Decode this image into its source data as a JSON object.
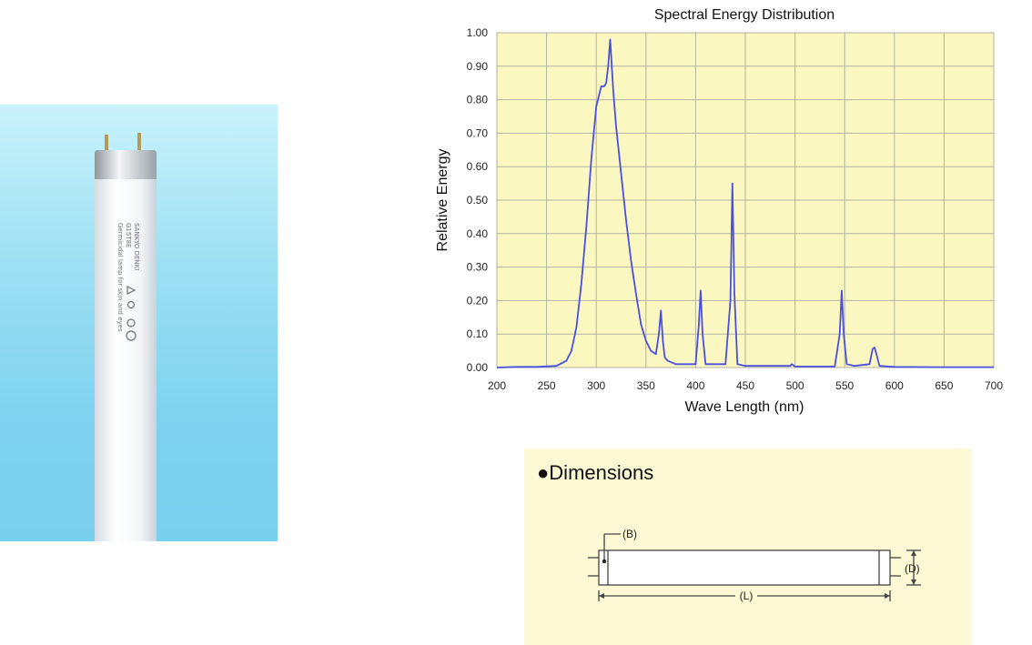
{
  "colors": {
    "plot_background": "#fbf7c0",
    "grid": "#b2b3a0",
    "series": "#4a4fe0",
    "photo_background": "#8ad8f1",
    "dimensions_panel": "#fdf9d5"
  },
  "icons": {
    "product_photo": "fluorescent-tube-image",
    "bullet": "filled-circle-bullet"
  },
  "chart_data": {
    "type": "line",
    "title": "Spectral Energy Distribution",
    "xlabel": "Wave Length (nm)",
    "ylabel": "Relative Energy",
    "xlim": [
      200,
      700
    ],
    "ylim": [
      0,
      1
    ],
    "grid": true,
    "legend": "none",
    "x_ticks": [
      "200",
      "250",
      "300",
      "350",
      "400",
      "450",
      "500",
      "550",
      "600",
      "650",
      "700"
    ],
    "y_ticks": [
      "0.00",
      "0.10",
      "0.20",
      "0.30",
      "0.40",
      "0.50",
      "0.60",
      "0.70",
      "0.80",
      "0.90",
      "1.00"
    ],
    "series": [
      {
        "x": [
          200,
          220,
          240,
          260,
          270,
          275,
          280,
          285,
          290,
          295,
          300,
          305,
          308,
          310,
          312,
          314,
          315,
          317,
          320,
          325,
          330,
          335,
          340,
          345,
          350,
          355,
          360,
          363,
          365,
          367,
          369,
          372,
          380,
          400,
          403,
          405,
          407,
          410,
          420,
          430,
          435,
          437,
          439,
          442,
          450,
          495,
          497,
          500,
          540,
          545,
          547,
          549,
          552,
          560,
          575,
          578,
          580,
          582,
          585,
          600,
          650,
          700
        ],
        "y": [
          0,
          0.002,
          0.002,
          0.005,
          0.02,
          0.05,
          0.12,
          0.25,
          0.42,
          0.62,
          0.78,
          0.84,
          0.84,
          0.85,
          0.9,
          0.98,
          0.93,
          0.83,
          0.72,
          0.58,
          0.44,
          0.32,
          0.22,
          0.13,
          0.08,
          0.05,
          0.04,
          0.1,
          0.17,
          0.08,
          0.03,
          0.02,
          0.01,
          0.01,
          0.12,
          0.23,
          0.1,
          0.01,
          0.01,
          0.01,
          0.2,
          0.55,
          0.22,
          0.01,
          0.005,
          0.005,
          0.01,
          0.003,
          0.003,
          0.1,
          0.23,
          0.1,
          0.01,
          0.005,
          0.01,
          0.055,
          0.06,
          0.04,
          0.005,
          0.002,
          0.001,
          0.001
        ]
      }
    ]
  },
  "dimensions": {
    "title": "Dimensions",
    "label_b": "(B)",
    "label_d": "(D)",
    "label_l": "(L)"
  }
}
